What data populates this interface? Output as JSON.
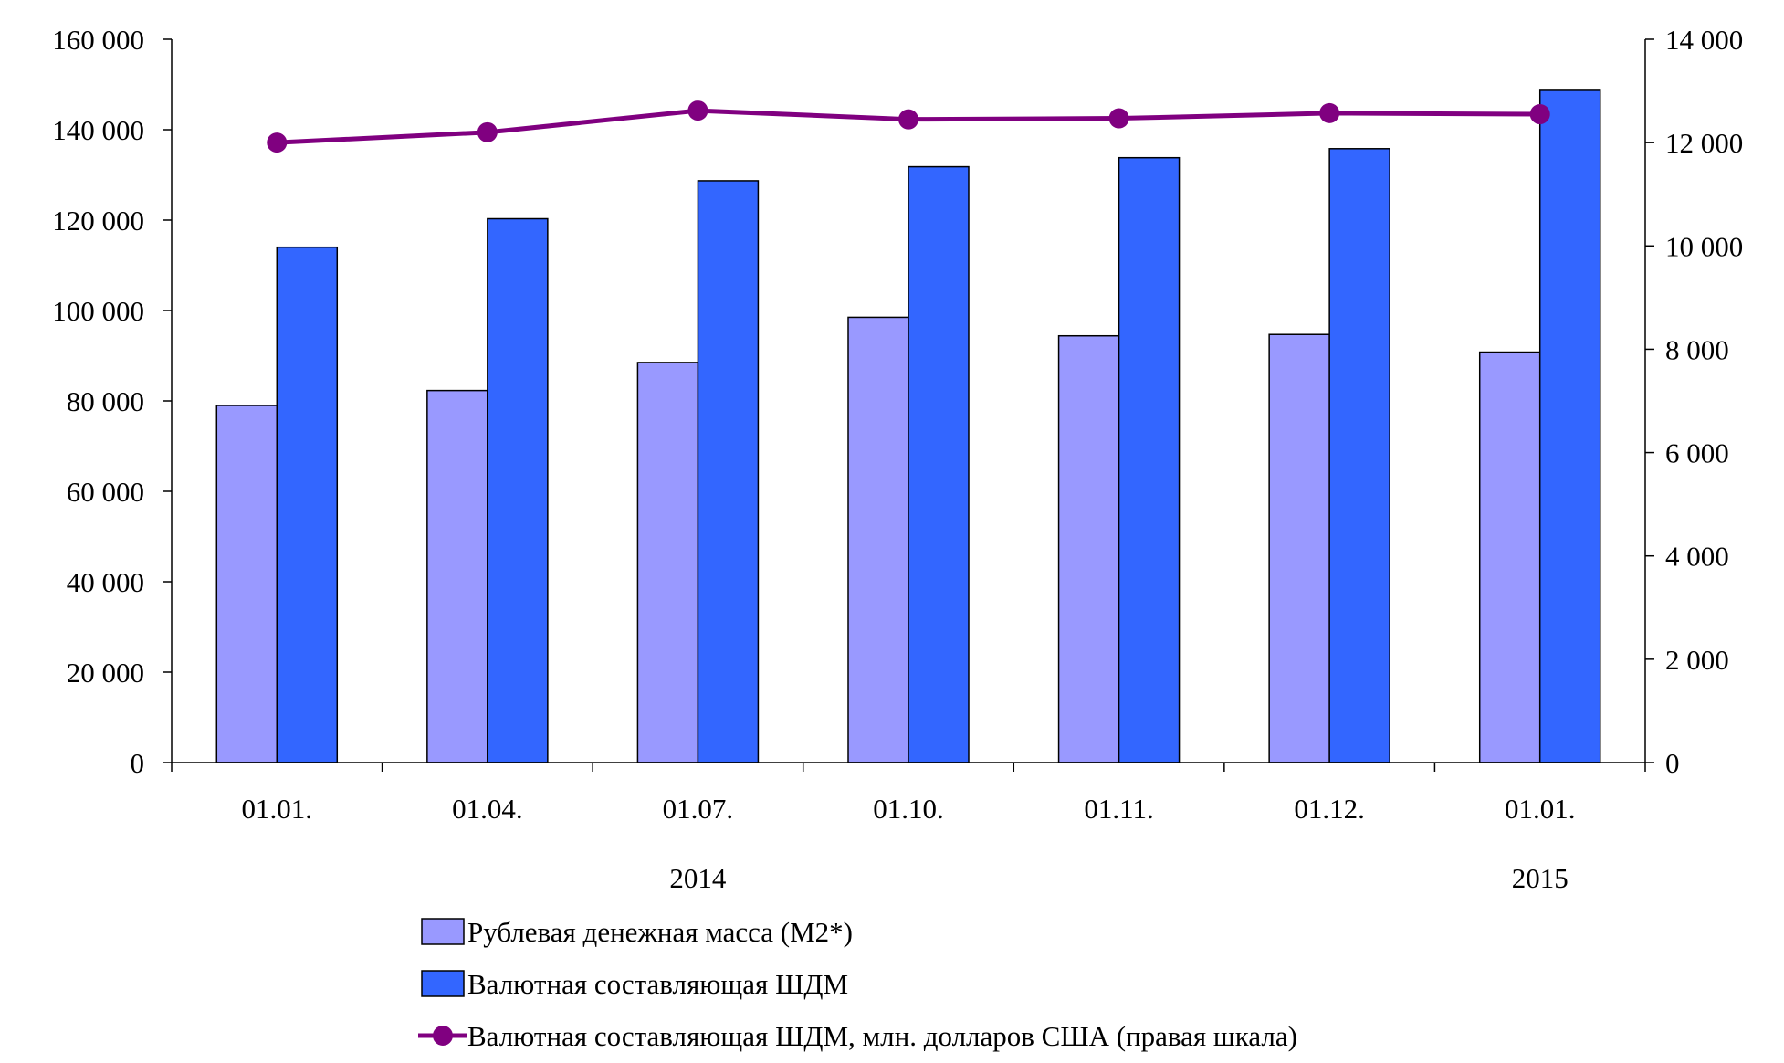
{
  "chart_data": {
    "type": "bar",
    "categories": [
      "01.01.",
      "01.04.",
      "01.07.",
      "01.10.",
      "01.11.",
      "01.12.",
      "01.01."
    ],
    "year_labels": [
      {
        "text": "2014",
        "under_category": 2
      },
      {
        "text": "2015",
        "under_category": 6
      }
    ],
    "series": [
      {
        "name": "Рублевая денежная масса (М2*)",
        "kind": "bar",
        "axis": "left",
        "color": "#9999ff",
        "values": [
          79000,
          82300,
          88500,
          98500,
          94400,
          94700,
          90800
        ]
      },
      {
        "name": "Валютная составляющая ШДМ",
        "kind": "bar",
        "axis": "left",
        "color": "#3366ff",
        "values": [
          114000,
          120300,
          128700,
          131800,
          133800,
          135800,
          148700
        ]
      },
      {
        "name": "Валютная составляющая ШДМ, млн. долларов США (правая шкала)",
        "kind": "line",
        "axis": "right",
        "color": "#800080",
        "values": [
          12000,
          12200,
          12620,
          12450,
          12470,
          12570,
          12550
        ]
      }
    ],
    "left_axis": {
      "ylim": [
        0,
        160000
      ],
      "tick_labels": [
        "0",
        "20 000",
        "40 000",
        "60 000",
        "80 000",
        "100 000",
        "120 000",
        "140 000",
        "160 000"
      ]
    },
    "right_axis": {
      "ylim": [
        0,
        14000
      ],
      "tick_labels": [
        "0",
        "2 000",
        "4 000",
        "6 000",
        "8 000",
        "10 000",
        "12 000",
        "14 000"
      ]
    },
    "grid": false,
    "legend_position": "bottom"
  }
}
